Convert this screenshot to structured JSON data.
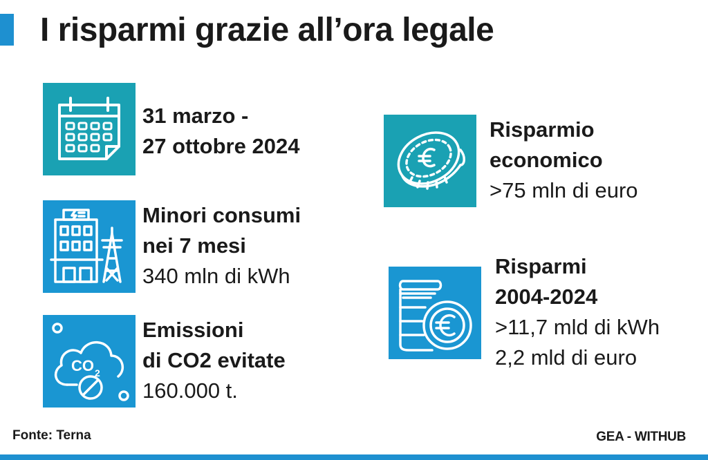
{
  "title": "I risparmi grazie all’ora legale",
  "items": [
    {
      "icon": "calendar-icon",
      "bold": [
        "31 marzo -",
        "27 ottobre 2024"
      ],
      "regular": []
    },
    {
      "icon": "building-power-icon",
      "bold": [
        "Minori consumi",
        "nei 7 mesi"
      ],
      "regular": [
        "340 mln di kWh"
      ]
    },
    {
      "icon": "co2-cloud-icon",
      "bold": [
        "Emissioni",
        "di CO2 evitate"
      ],
      "regular": [
        "160.000 t."
      ]
    },
    {
      "icon": "euro-coin-icon",
      "bold": [
        "Risparmio",
        "economico"
      ],
      "regular": [
        ">75 mln di euro"
      ]
    },
    {
      "icon": "coin-stack-icon",
      "bold": [
        "Risparmi",
        "2004-2024"
      ],
      "regular": [
        ">11,7 mld di kWh",
        "2,2 mld di euro"
      ]
    }
  ],
  "footer": {
    "source": "Fonte: Terna",
    "credit": "GEA - WITHUB"
  },
  "colors": {
    "accent": "#1e90d0",
    "teal": "#1aa1b3",
    "blue": "#1a96d2"
  }
}
